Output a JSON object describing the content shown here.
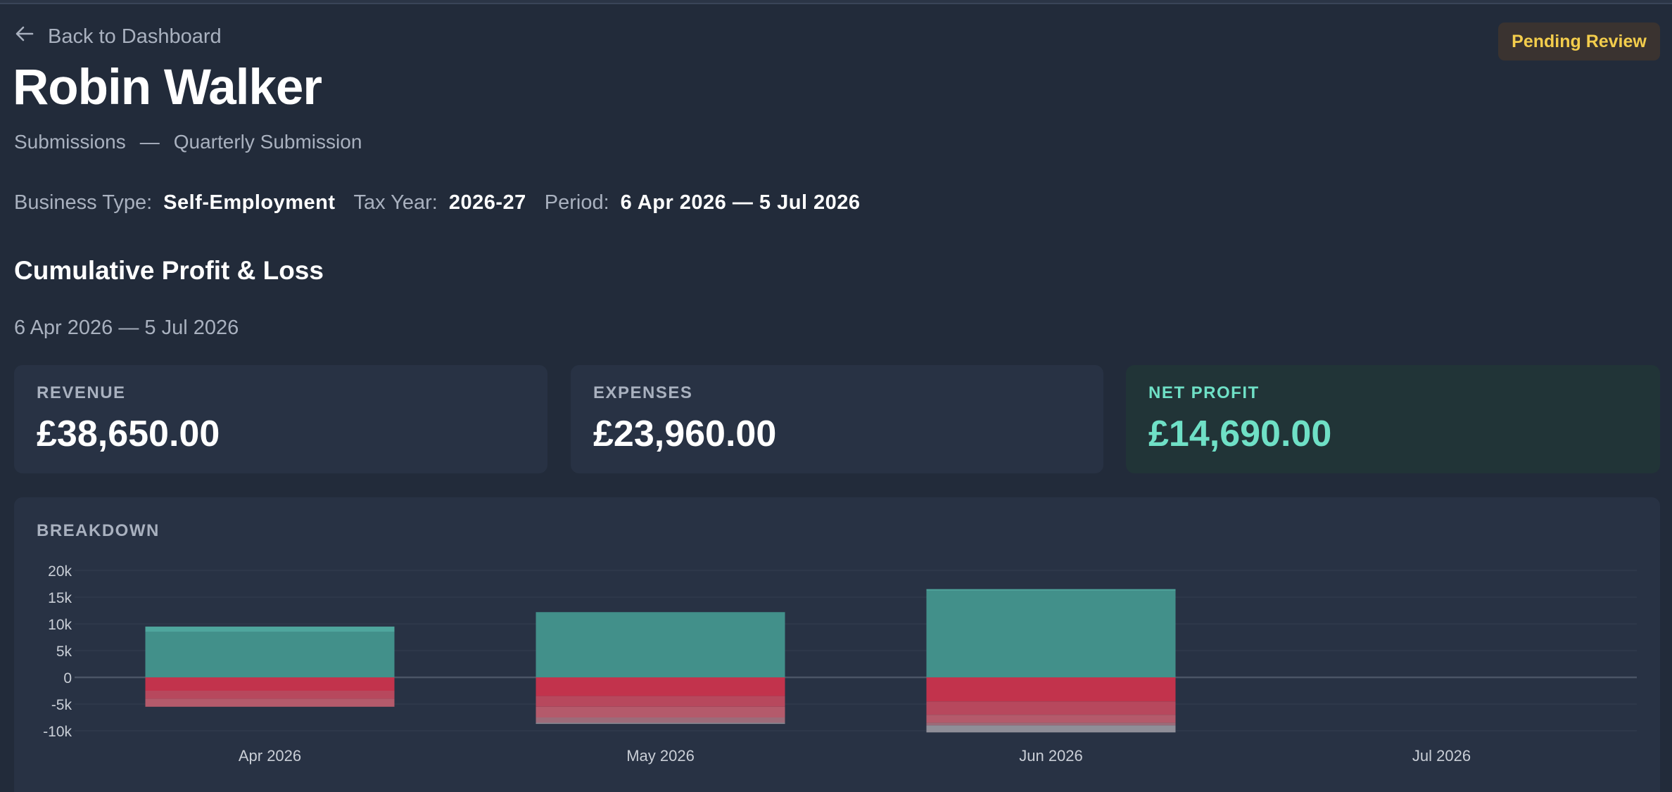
{
  "nav": {
    "back_label": "Back to Dashboard"
  },
  "status": {
    "label": "Pending Review",
    "color": "#f3cd4c"
  },
  "client": {
    "name": "Robin Walker"
  },
  "breadcrumb": {
    "section": "Submissions",
    "separator": "—",
    "page": "Quarterly Submission"
  },
  "meta": {
    "business_type_label": "Business Type:",
    "business_type": "Self-Employment",
    "tax_year_label": "Tax Year:",
    "tax_year": "2026-27",
    "period_label": "Period:",
    "period": "6 Apr 2026 — 5 Jul 2026"
  },
  "summary": {
    "title": "Cumulative Profit & Loss",
    "period": "6 Apr 2026 — 5 Jul 2026",
    "cards": {
      "revenue": {
        "label": "REVENUE",
        "value": "£38,650.00"
      },
      "expenses": {
        "label": "EXPENSES",
        "value": "£23,960.00"
      },
      "net_profit": {
        "label": "NET PROFIT",
        "value": "£14,690.00"
      }
    }
  },
  "breakdown": {
    "label": "BREAKDOWN"
  },
  "colors": {
    "revenue": "#42908a",
    "expenses": "#c2334c",
    "net_profit_accent": "#6fe0c6"
  },
  "chart_data": {
    "type": "bar",
    "stacked": true,
    "categories": [
      "Apr 2026",
      "May 2026",
      "Jun 2026",
      "Jul 2026"
    ],
    "y_ticks": [
      "20k",
      "15k",
      "10k",
      "5k",
      "0",
      "-5k",
      "-10k"
    ],
    "ylim": [
      -10000,
      20000
    ],
    "grid": true,
    "series": [
      {
        "color": "#42908a",
        "values": [
          8500,
          12200,
          16200,
          0
        ]
      },
      {
        "color": "#4fa69d",
        "values": [
          1000,
          0,
          300,
          0
        ]
      },
      {
        "color": "#c2334c",
        "values": [
          -2500,
          -3500,
          -4500,
          0
        ]
      },
      {
        "color": "#b7485d",
        "values": [
          -1500,
          -2000,
          -2500,
          0
        ]
      },
      {
        "color": "#b45a6b",
        "values": [
          -1500,
          -2000,
          -1500,
          0
        ]
      },
      {
        "color": "#9c6b79",
        "values": [
          0,
          -1000,
          -500,
          0
        ]
      },
      {
        "color": "#8f8e98",
        "values": [
          0,
          -200,
          -1300,
          0
        ]
      }
    ]
  }
}
